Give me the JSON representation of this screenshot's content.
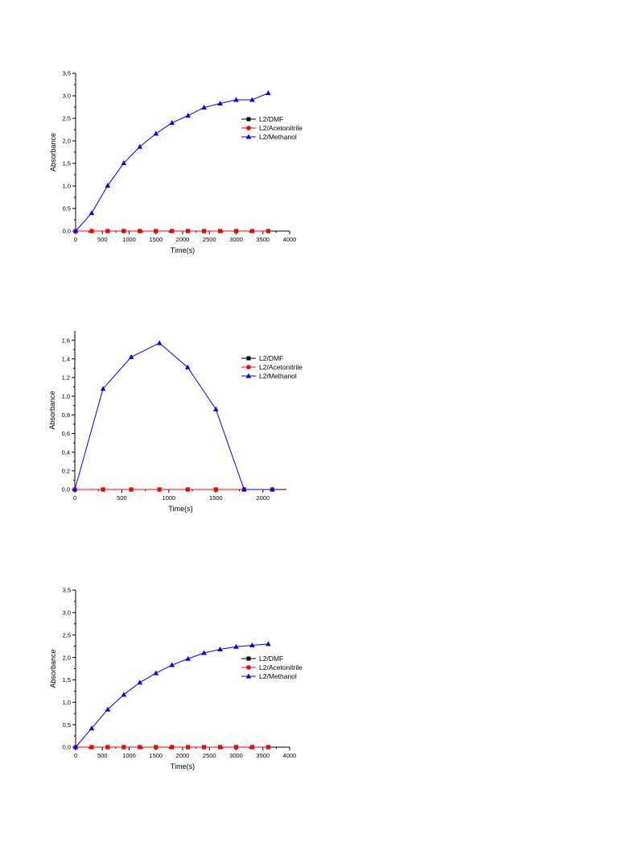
{
  "chart_data": [
    {
      "type": "line",
      "xlabel": "Time(s)",
      "ylabel": "Absorbance",
      "xlim": [
        0,
        4000
      ],
      "ylim": [
        0,
        3.5
      ],
      "xticks": [
        0,
        500,
        1000,
        1500,
        2000,
        2500,
        3000,
        3500,
        4000
      ],
      "xtick_labels": [
        "0",
        "500",
        "1000",
        "1500",
        "2000",
        "2500",
        "3000",
        "3500",
        "4000"
      ],
      "yticks": [
        0,
        0.5,
        1.0,
        1.5,
        2.0,
        2.5,
        3.0,
        3.5
      ],
      "ytick_labels": [
        "0,0",
        "0,5",
        "1,0",
        "1,5",
        "2,0",
        "2,5",
        "3,0",
        "3,5"
      ],
      "grid": false,
      "legend_position": "right",
      "series": [
        {
          "name": "L2/DMF",
          "color": "#000000",
          "marker": "square",
          "x": [
            0,
            300,
            600,
            900,
            1200,
            1500,
            1800,
            2100,
            2400,
            2700,
            3000,
            3300,
            3600
          ],
          "y": [
            0,
            0,
            0,
            0,
            0,
            0,
            0,
            0,
            0,
            0,
            0,
            0,
            0
          ]
        },
        {
          "name": "L2/Acetonitrile",
          "color": "#ff0000",
          "marker": "circle",
          "x": [
            0,
            300,
            600,
            900,
            1200,
            1500,
            1800,
            2100,
            2400,
            2700,
            3000,
            3300,
            3600
          ],
          "y": [
            0,
            0,
            0,
            0,
            0,
            0,
            0,
            0,
            0,
            0,
            0,
            0,
            0
          ]
        },
        {
          "name": "L2/Methanol",
          "color": "#0000ff",
          "marker": "triangle",
          "x": [
            0,
            300,
            600,
            900,
            1200,
            1500,
            1800,
            2100,
            2400,
            2700,
            3000,
            3300,
            3600
          ],
          "y": [
            0,
            0.4,
            1.01,
            1.51,
            1.87,
            2.16,
            2.4,
            2.56,
            2.74,
            2.83,
            2.91,
            2.91,
            3.06
          ]
        }
      ]
    },
    {
      "type": "line",
      "xlabel": "Time(s)",
      "ylabel": "Absorbance",
      "xlim": [
        0,
        2250
      ],
      "ylim": [
        0,
        1.7
      ],
      "xticks": [
        0,
        500,
        1000,
        1500,
        2000
      ],
      "xtick_labels": [
        "0",
        "500",
        "1000",
        "1500",
        "2000"
      ],
      "yticks": [
        0,
        0.2,
        0.4,
        0.6,
        0.8,
        1.0,
        1.2,
        1.4,
        1.6
      ],
      "ytick_labels": [
        "0,0",
        "0,2",
        "0,4",
        "0,6",
        "0,8",
        "1,0",
        "1,2",
        "1,4",
        "1,6"
      ],
      "grid": false,
      "legend_position": "right",
      "series": [
        {
          "name": "L2/DMF",
          "color": "#000000",
          "marker": "square",
          "x": [
            0,
            300,
            600,
            900,
            1200,
            1500,
            1800,
            2100
          ],
          "y": [
            0,
            0,
            0,
            0,
            0,
            0,
            0,
            0
          ]
        },
        {
          "name": "L2/Acetonitrile",
          "color": "#ff0000",
          "marker": "circle",
          "x": [
            0,
            300,
            600,
            900,
            1200,
            1500,
            1800,
            2100
          ],
          "y": [
            0,
            0,
            0,
            0,
            0,
            0,
            0,
            0
          ]
        },
        {
          "name": "L2/Methanol",
          "color": "#0000ff",
          "marker": "triangle",
          "x": [
            0,
            300,
            600,
            900,
            1200,
            1500,
            1800,
            2100
          ],
          "y": [
            0,
            1.08,
            1.42,
            1.57,
            1.31,
            0.86,
            0,
            0
          ]
        }
      ]
    },
    {
      "type": "line",
      "xlabel": "Time(s)",
      "ylabel": "Absorbance",
      "xlim": [
        0,
        4000
      ],
      "ylim": [
        0,
        3.5
      ],
      "xticks": [
        0,
        500,
        1000,
        1500,
        2000,
        2500,
        3000,
        3500,
        4000
      ],
      "xtick_labels": [
        "0",
        "500",
        "1000",
        "1500",
        "2000",
        "2500",
        "3000",
        "3500",
        "4000"
      ],
      "yticks": [
        0,
        0.5,
        1.0,
        1.5,
        2.0,
        2.5,
        3.0,
        3.5
      ],
      "ytick_labels": [
        "0,0",
        "0,5",
        "1,0",
        "1,5",
        "2,0",
        "2,5",
        "3,0",
        "3,5"
      ],
      "grid": false,
      "legend_position": "right",
      "series": [
        {
          "name": "L2/DMF",
          "color": "#000000",
          "marker": "square",
          "x": [
            0,
            300,
            600,
            900,
            1200,
            1500,
            1800,
            2100,
            2400,
            2700,
            3000,
            3300,
            3600
          ],
          "y": [
            0,
            0,
            0,
            0,
            0,
            0,
            0,
            0,
            0,
            0,
            0,
            0,
            0
          ]
        },
        {
          "name": "L2/Acetonitrile",
          "color": "#ff0000",
          "marker": "circle",
          "x": [
            0,
            300,
            600,
            900,
            1200,
            1500,
            1800,
            2100,
            2400,
            2700,
            3000,
            3300,
            3600
          ],
          "y": [
            0,
            0,
            0,
            0,
            0,
            0,
            0,
            0,
            0,
            0,
            0,
            0,
            0
          ]
        },
        {
          "name": "L2/Methanol",
          "color": "#0000ff",
          "marker": "triangle",
          "x": [
            0,
            300,
            600,
            900,
            1200,
            1500,
            1800,
            2100,
            2400,
            2700,
            3000,
            3300,
            3600
          ],
          "y": [
            0,
            0.42,
            0.84,
            1.17,
            1.44,
            1.65,
            1.83,
            1.97,
            2.1,
            2.18,
            2.24,
            2.27,
            2.3
          ]
        }
      ]
    }
  ]
}
